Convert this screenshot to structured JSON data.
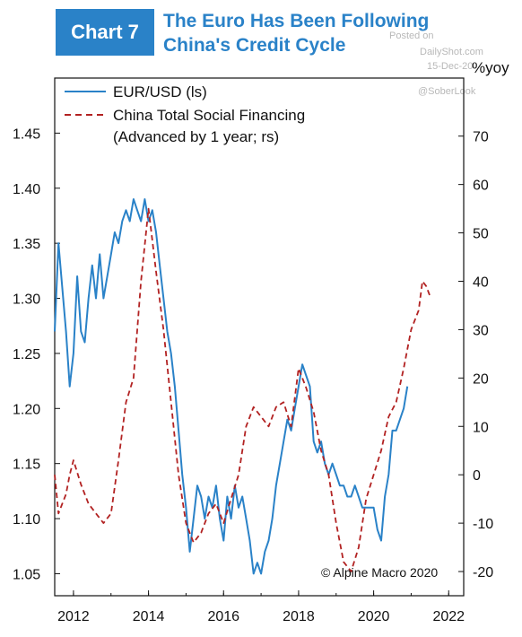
{
  "header": {
    "badge": "Chart 7",
    "title_line1": "The Euro Has Been Following",
    "title_line2": "China's Credit Cycle"
  },
  "watermark": {
    "posted": "Posted on",
    "site": "DailyShot.com",
    "date": "15-Dec-20",
    "handle": "@SoberLook"
  },
  "right_axis_unit": "%yoy",
  "credit": "© Alpine Macro 2020",
  "colors": {
    "eur": "#2a82c8",
    "china": "#b22222",
    "accent": "#2a82c8"
  },
  "chart_data": {
    "type": "line",
    "xlabel": "",
    "ylabel": "",
    "x_ticks": [
      "2012",
      "2014",
      "2016",
      "2018",
      "2020",
      "2022"
    ],
    "x_range": [
      2011.5,
      2022.4
    ],
    "left_axis": {
      "ticks": [
        "1.05",
        "1.10",
        "1.15",
        "1.20",
        "1.25",
        "1.30",
        "1.35",
        "1.40",
        "1.45"
      ],
      "ylim": [
        1.03,
        1.5
      ]
    },
    "right_axis": {
      "ticks": [
        "-20",
        "-10",
        "0",
        "10",
        "20",
        "30",
        "40",
        "50",
        "60",
        "70"
      ],
      "ylim": [
        -25,
        82
      ]
    },
    "grid": false,
    "legend_position": "top-left",
    "series": [
      {
        "name": "EUR/USD (ls)",
        "axis": "left",
        "style": "solid",
        "x": [
          2011.5,
          2011.6,
          2011.7,
          2011.8,
          2011.9,
          2012.0,
          2012.1,
          2012.2,
          2012.3,
          2012.4,
          2012.5,
          2012.6,
          2012.7,
          2012.8,
          2012.9,
          2013.0,
          2013.1,
          2013.2,
          2013.3,
          2013.4,
          2013.5,
          2013.6,
          2013.7,
          2013.8,
          2013.9,
          2014.0,
          2014.1,
          2014.2,
          2014.3,
          2014.4,
          2014.5,
          2014.6,
          2014.7,
          2014.8,
          2014.9,
          2015.0,
          2015.1,
          2015.2,
          2015.3,
          2015.4,
          2015.5,
          2015.6,
          2015.7,
          2015.8,
          2015.9,
          2016.0,
          2016.1,
          2016.2,
          2016.3,
          2016.4,
          2016.5,
          2016.6,
          2016.7,
          2016.8,
          2016.9,
          2017.0,
          2017.1,
          2017.2,
          2017.3,
          2017.4,
          2017.5,
          2017.6,
          2017.7,
          2017.8,
          2017.9,
          2018.0,
          2018.1,
          2018.2,
          2018.3,
          2018.4,
          2018.5,
          2018.6,
          2018.7,
          2018.8,
          2018.9,
          2019.0,
          2019.1,
          2019.2,
          2019.3,
          2019.4,
          2019.5,
          2019.6,
          2019.7,
          2019.8,
          2019.9,
          2020.0,
          2020.1,
          2020.2,
          2020.3,
          2020.4,
          2020.5,
          2020.6,
          2020.7,
          2020.8,
          2020.9
        ],
        "values": [
          1.27,
          1.35,
          1.31,
          1.27,
          1.22,
          1.25,
          1.32,
          1.27,
          1.26,
          1.3,
          1.33,
          1.3,
          1.34,
          1.3,
          1.32,
          1.34,
          1.36,
          1.35,
          1.37,
          1.38,
          1.37,
          1.39,
          1.38,
          1.37,
          1.39,
          1.37,
          1.38,
          1.36,
          1.33,
          1.3,
          1.27,
          1.25,
          1.22,
          1.18,
          1.14,
          1.11,
          1.07,
          1.1,
          1.13,
          1.12,
          1.1,
          1.12,
          1.11,
          1.13,
          1.1,
          1.08,
          1.12,
          1.1,
          1.13,
          1.11,
          1.12,
          1.1,
          1.08,
          1.05,
          1.06,
          1.05,
          1.07,
          1.08,
          1.1,
          1.13,
          1.15,
          1.17,
          1.19,
          1.18,
          1.2,
          1.22,
          1.24,
          1.23,
          1.22,
          1.17,
          1.16,
          1.17,
          1.15,
          1.14,
          1.15,
          1.14,
          1.13,
          1.13,
          1.12,
          1.12,
          1.13,
          1.12,
          1.11,
          1.11,
          1.11,
          1.11,
          1.09,
          1.08,
          1.12,
          1.14,
          1.18,
          1.18,
          1.19,
          1.2,
          1.22
        ]
      },
      {
        "name": "China Total Social Financing (Advanced by 1 year; rs)",
        "axis": "right",
        "style": "dashed",
        "x": [
          2011.5,
          2011.6,
          2011.7,
          2011.8,
          2011.9,
          2012.0,
          2012.2,
          2012.4,
          2012.6,
          2012.8,
          2013.0,
          2013.2,
          2013.4,
          2013.6,
          2013.8,
          2014.0,
          2014.2,
          2014.4,
          2014.6,
          2014.8,
          2015.0,
          2015.2,
          2015.4,
          2015.6,
          2015.8,
          2016.0,
          2016.2,
          2016.4,
          2016.6,
          2016.8,
          2017.0,
          2017.2,
          2017.4,
          2017.6,
          2017.8,
          2018.0,
          2018.2,
          2018.4,
          2018.6,
          2018.8,
          2019.0,
          2019.2,
          2019.4,
          2019.6,
          2019.8,
          2020.0,
          2020.2,
          2020.4,
          2020.6,
          2020.8,
          2021.0,
          2021.2,
          2021.3,
          2021.4,
          2021.5
        ],
        "values": [
          0,
          -8,
          -6,
          -4,
          0,
          3,
          -2,
          -6,
          -8,
          -10,
          -8,
          3,
          15,
          20,
          40,
          55,
          42,
          30,
          15,
          0,
          -10,
          -14,
          -12,
          -8,
          -6,
          -10,
          -5,
          0,
          10,
          14,
          12,
          10,
          14,
          15,
          10,
          22,
          18,
          13,
          5,
          0,
          -10,
          -18,
          -20,
          -15,
          -5,
          0,
          5,
          12,
          15,
          22,
          30,
          34,
          40,
          39,
          37
        ]
      }
    ],
    "legend": [
      {
        "label": "EUR/USD (ls)",
        "style": "solid"
      },
      {
        "label": "China Total Social Financing",
        "label2": "(Advanced by 1 year; rs)",
        "style": "dashed"
      }
    ]
  }
}
